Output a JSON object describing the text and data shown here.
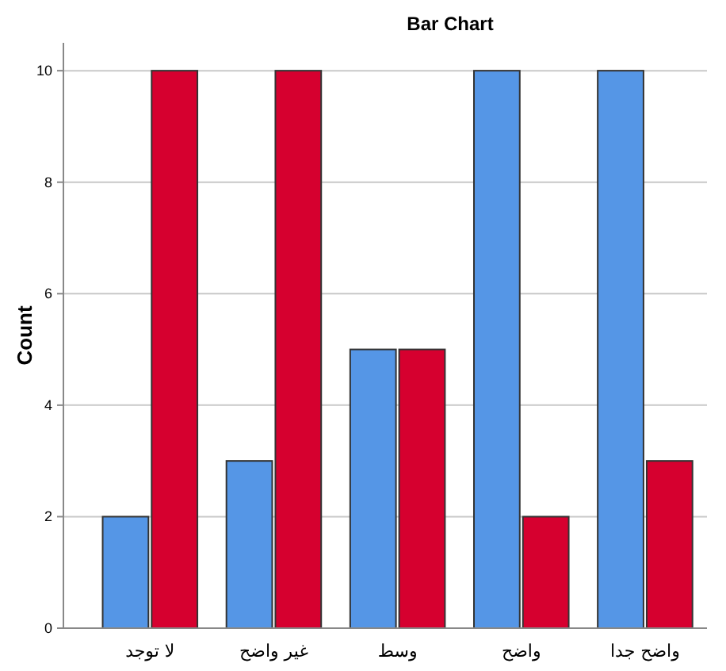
{
  "chart_data": {
    "type": "bar",
    "title": "Bar Chart",
    "ylabel": "Count",
    "categories": [
      "لا توجد",
      "غير واضح",
      "وسط",
      "واضح",
      "واضح جدا"
    ],
    "series": [
      {
        "color": "#5596e6",
        "values": [
          2,
          3,
          5,
          10,
          10
        ]
      },
      {
        "color": "#d6002f",
        "values": [
          10,
          10,
          5,
          2,
          3
        ]
      }
    ],
    "ylim": [
      0,
      10.5
    ],
    "yticks": [
      0,
      2,
      4,
      6,
      8,
      10
    ],
    "grid": "y"
  }
}
